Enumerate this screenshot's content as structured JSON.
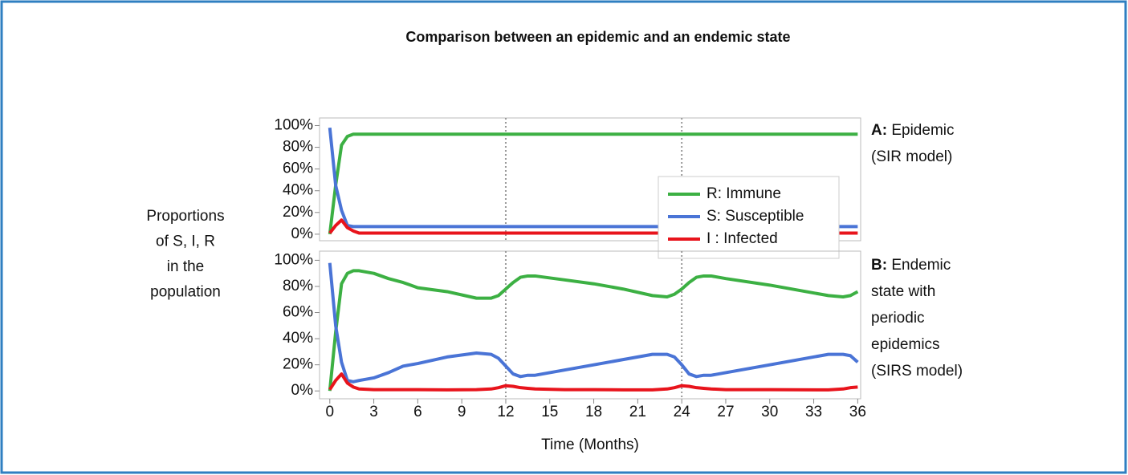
{
  "title": "Comparison between an epidemic and an endemic state",
  "ylabel_lines": [
    "Proportions",
    "of S, I, R",
    "in the",
    "population"
  ],
  "chart_data": [
    {
      "type": "line",
      "panel_label": "A:",
      "annotation_lines": [
        "Epidemic",
        "(SIR model)"
      ],
      "x": [
        0,
        0.4,
        0.8,
        1.2,
        1.6,
        2,
        4,
        8,
        12,
        16,
        20,
        24,
        28,
        32,
        36
      ],
      "series": [
        {
          "name": "R: Immune",
          "color": "#3cb043",
          "values": [
            0,
            45,
            82,
            90,
            92,
            92,
            92,
            92,
            92,
            92,
            92,
            92,
            92,
            92,
            92
          ]
        },
        {
          "name": "S: Susceptible",
          "color": "#4a74d6",
          "values": [
            98,
            45,
            22,
            8,
            7,
            7,
            7,
            7,
            7,
            7,
            7,
            7,
            7,
            7,
            7
          ]
        },
        {
          "name": "I : Infected",
          "color": "#e8141c",
          "values": [
            1,
            8,
            13,
            6,
            3,
            1,
            1,
            1,
            1,
            1,
            1,
            1,
            1,
            1,
            1
          ]
        }
      ],
      "xlim": [
        -0.7,
        36.2
      ],
      "ylim": [
        -6,
        107
      ],
      "yticks": [
        {
          "value": 0,
          "label": "0%"
        },
        {
          "value": 20,
          "label": "20%"
        },
        {
          "value": 40,
          "label": "40%"
        },
        {
          "value": 60,
          "label": "60%"
        },
        {
          "value": 80,
          "label": "80%"
        },
        {
          "value": 100,
          "label": "100%"
        }
      ],
      "vlines": [
        12,
        24
      ],
      "legend": "center-right"
    },
    {
      "type": "line",
      "panel_label": "B:",
      "annotation_lines": [
        "Endemic",
        "state with",
        "periodic",
        "epidemics",
        "(SIRS model)"
      ],
      "xlabel": "Time (Months)",
      "x": [
        0,
        0.4,
        0.8,
        1.2,
        1.6,
        2,
        3,
        4,
        5,
        6,
        8,
        10,
        11,
        11.5,
        12,
        12.5,
        13,
        13.5,
        14,
        16,
        18,
        20,
        22,
        23,
        23.5,
        24,
        24.5,
        25,
        25.5,
        26,
        27,
        30,
        34,
        35,
        35.5,
        36
      ],
      "series": [
        {
          "color": "#3cb043",
          "values": [
            0,
            45,
            82,
            90,
            92,
            92,
            90,
            86,
            83,
            79,
            76,
            71,
            71,
            73,
            78,
            83,
            87,
            88,
            88,
            85,
            82,
            78,
            73,
            72,
            74,
            78,
            83,
            87,
            88,
            88,
            86,
            81,
            73,
            72,
            73,
            76
          ]
        },
        {
          "color": "#4a74d6",
          "values": [
            98,
            50,
            22,
            8,
            7,
            8,
            10,
            14,
            19,
            21,
            26,
            29,
            28,
            25,
            19,
            13,
            11,
            12,
            12,
            16,
            20,
            24,
            28,
            28,
            26,
            20,
            13,
            11,
            12,
            12,
            14,
            20,
            28,
            28,
            27,
            22
          ]
        },
        {
          "color": "#e8141c",
          "values": [
            1,
            8,
            13,
            6,
            3,
            1.5,
            1,
            1,
            1,
            1,
            0.8,
            1,
            1.5,
            2.5,
            4,
            3.5,
            2.5,
            2,
            1.5,
            1,
            1,
            0.8,
            0.8,
            1.5,
            2.5,
            4,
            3.5,
            2.5,
            2,
            1.5,
            1,
            1,
            0.8,
            1.5,
            2.5,
            3
          ]
        }
      ],
      "xlim": [
        -0.7,
        36.2
      ],
      "ylim": [
        -6,
        107
      ],
      "xticks": [
        0,
        3,
        6,
        9,
        12,
        15,
        18,
        21,
        24,
        27,
        30,
        33,
        36
      ],
      "yticks": [
        {
          "value": 0,
          "label": "0%"
        },
        {
          "value": 20,
          "label": "20%"
        },
        {
          "value": 40,
          "label": "40%"
        },
        {
          "value": 60,
          "label": "60%"
        },
        {
          "value": 80,
          "label": "80%"
        },
        {
          "value": 100,
          "label": "100%"
        }
      ],
      "vlines": [
        12,
        24
      ]
    }
  ]
}
